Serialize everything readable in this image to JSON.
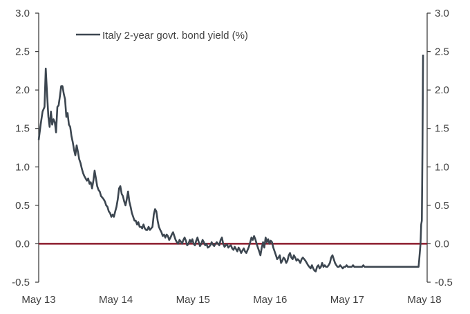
{
  "chart_data": {
    "type": "line",
    "title": "",
    "xlabel": "",
    "ylabel": "",
    "ylim": [
      -0.5,
      3.0
    ],
    "y_ticks": [
      "3.0",
      "2.5",
      "2.0",
      "1.5",
      "1.0",
      "0.5",
      "0.0",
      "-0.5"
    ],
    "y_tick_values": [
      3.0,
      2.5,
      2.0,
      1.5,
      1.0,
      0.5,
      0.0,
      -0.5
    ],
    "secondary_y_ticks": [
      "3.0",
      "2.5",
      "2.0",
      "1.5",
      "1.0",
      "0.5",
      "0.0",
      "-0.5"
    ],
    "x_ticks": [
      "May 13",
      "May 14",
      "May 15",
      "May 16",
      "May 17",
      "May 18"
    ],
    "grid": false,
    "legend_position": "top-left inside",
    "reference_line": {
      "value": 0.0,
      "color": "#8b1a2b"
    },
    "series": [
      {
        "name": "Italy 2-year govt. bond yield (%)",
        "color": "#3c4650",
        "x_months_since_may13": [
          0,
          0.3,
          0.6,
          0.9,
          1.1,
          1.3,
          1.5,
          1.7,
          1.9,
          2.1,
          2.3,
          2.5,
          2.7,
          2.9,
          3.1,
          3.3,
          3.5,
          3.7,
          3.9,
          4.1,
          4.3,
          4.5,
          4.7,
          4.9,
          5.1,
          5.3,
          5.5,
          5.7,
          5.9,
          6.1,
          6.3,
          6.5,
          6.7,
          6.9,
          7.1,
          7.3,
          7.5,
          7.7,
          7.9,
          8.1,
          8.3,
          8.5,
          8.7,
          8.9,
          9.1,
          9.3,
          9.5,
          9.7,
          9.9,
          10.1,
          10.3,
          10.5,
          10.7,
          10.9,
          11.1,
          11.3,
          11.5,
          11.7,
          11.9,
          12.1,
          12.3,
          12.5,
          12.7,
          12.9,
          13.1,
          13.3,
          13.5,
          13.7,
          13.9,
          14.1,
          14.3,
          14.5,
          14.7,
          14.9,
          15.1,
          15.3,
          15.5,
          15.7,
          15.9,
          16.1,
          16.3,
          16.5,
          16.7,
          16.9,
          17.1,
          17.3,
          17.5,
          17.7,
          17.9,
          18.1,
          18.3,
          18.5,
          18.7,
          18.9,
          19.1,
          19.3,
          19.5,
          19.7,
          19.9,
          20.1,
          20.3,
          20.5,
          20.7,
          20.9,
          21.1,
          21.3,
          21.5,
          21.7,
          21.9,
          22.1,
          22.3,
          22.5,
          22.7,
          22.9,
          23.1,
          23.3,
          23.5,
          23.7,
          23.9,
          24.1,
          24.3,
          24.5,
          24.7,
          24.9,
          25.1,
          25.3,
          25.5,
          25.7,
          25.9,
          26.1,
          26.3,
          26.5,
          26.7,
          26.9,
          27.1,
          27.3,
          27.5,
          27.7,
          27.9,
          28.1,
          28.3,
          28.5,
          28.7,
          28.9,
          29.1,
          29.3,
          29.5,
          29.7,
          29.9,
          30.1,
          30.3,
          30.5,
          30.7,
          30.9,
          31.1,
          31.3,
          31.5,
          31.7,
          31.9,
          32.1,
          32.3,
          32.5,
          32.7,
          32.9,
          33.1,
          33.3,
          33.5,
          33.7,
          33.9,
          34.1,
          34.3,
          34.5,
          34.7,
          34.9,
          35.1,
          35.3,
          35.5,
          35.7,
          35.9,
          36.1,
          36.3,
          36.5,
          36.7,
          36.9,
          37.1,
          37.3,
          37.5,
          37.7,
          37.9,
          38.1,
          38.3,
          38.5,
          38.7,
          38.9,
          39.1,
          39.3,
          39.5,
          39.7,
          39.9,
          40.1,
          40.3,
          40.5,
          40.7,
          40.9,
          41.1,
          41.3,
          41.5,
          41.7,
          41.9,
          42.1,
          42.3,
          42.5,
          42.7,
          42.9,
          43.1,
          43.3,
          43.5,
          43.7,
          43.9,
          44.1,
          44.3,
          44.5,
          44.7,
          44.9,
          45.1,
          45.3,
          45.5,
          45.7,
          45.9,
          46.1,
          46.3,
          46.5,
          46.7,
          46.9,
          47.1,
          47.3,
          47.5,
          47.7,
          47.9,
          48.1,
          48.3,
          48.5,
          48.7,
          48.9,
          49.1,
          49.3,
          49.5,
          49.7,
          49.9,
          50.1,
          50.3,
          50.5,
          50.7,
          50.9,
          51.1,
          51.3,
          51.5,
          51.7,
          51.9,
          52.1,
          52.3,
          52.5,
          52.7,
          52.9,
          53.1,
          53.3,
          53.5,
          53.7,
          53.9,
          54.1,
          54.3,
          54.5,
          54.7,
          54.9,
          55.1,
          55.3,
          55.5,
          55.7,
          55.9,
          56.1,
          56.3,
          56.5,
          56.7,
          56.9,
          57.1,
          57.3,
          57.5,
          57.7,
          57.9,
          58.1,
          58.3,
          58.5,
          58.7,
          58.9,
          59.1,
          59.3,
          59.5,
          59.7,
          59.9
        ],
        "values": [
          1.35,
          1.55,
          1.72,
          1.78,
          2.28,
          1.95,
          1.65,
          1.52,
          1.72,
          1.55,
          1.62,
          1.58,
          1.45,
          1.78,
          1.8,
          1.92,
          2.05,
          2.05,
          1.95,
          1.88,
          1.65,
          1.7,
          1.55,
          1.52,
          1.4,
          1.32,
          1.22,
          1.15,
          1.28,
          1.2,
          1.1,
          1.05,
          0.98,
          0.92,
          0.88,
          0.85,
          0.82,
          0.85,
          0.78,
          0.8,
          0.72,
          0.82,
          0.95,
          0.85,
          0.75,
          0.7,
          0.68,
          0.62,
          0.6,
          0.58,
          0.55,
          0.5,
          0.48,
          0.42,
          0.4,
          0.35,
          0.38,
          0.35,
          0.42,
          0.48,
          0.58,
          0.72,
          0.75,
          0.65,
          0.62,
          0.55,
          0.5,
          0.58,
          0.68,
          0.55,
          0.48,
          0.4,
          0.35,
          0.3,
          0.3,
          0.25,
          0.28,
          0.22,
          0.22,
          0.2,
          0.25,
          0.2,
          0.18,
          0.18,
          0.22,
          0.18,
          0.2,
          0.22,
          0.38,
          0.45,
          0.42,
          0.3,
          0.22,
          0.18,
          0.15,
          0.1,
          0.12,
          0.08,
          0.12,
          0.1,
          0.05,
          0.08,
          0.12,
          0.15,
          0.1,
          0.05,
          0.02,
          0.0,
          0.05,
          0.03,
          0.0,
          0.05,
          0.08,
          0.04,
          -0.02,
          0.0,
          0.05,
          0.02,
          0.06,
          0.0,
          -0.02,
          0.04,
          0.08,
          0.02,
          -0.03,
          0.0,
          0.05,
          0.02,
          -0.02,
          0.0,
          -0.05,
          -0.04,
          -0.02,
          0.02,
          -0.01,
          -0.03,
          0.0,
          0.02,
          0.0,
          -0.02,
          0.05,
          0.08,
          0.0,
          -0.04,
          -0.02,
          -0.01,
          -0.05,
          -0.03,
          -0.02,
          -0.06,
          -0.08,
          -0.04,
          -0.07,
          -0.1,
          -0.05,
          -0.08,
          -0.12,
          -0.09,
          -0.06,
          -0.1,
          -0.12,
          -0.08,
          -0.04,
          0.02,
          0.08,
          0.05,
          0.1,
          0.06,
          0.0,
          -0.05,
          -0.1,
          -0.15,
          -0.05,
          0.02,
          -0.05,
          0.08,
          0.02,
          0.06,
          0.0,
          0.04,
          0.02,
          -0.05,
          -0.1,
          -0.15,
          -0.2,
          -0.18,
          -0.15,
          -0.25,
          -0.22,
          -0.18,
          -0.2,
          -0.25,
          -0.22,
          -0.15,
          -0.12,
          -0.18,
          -0.2,
          -0.15,
          -0.18,
          -0.22,
          -0.2,
          -0.22,
          -0.25,
          -0.2,
          -0.18,
          -0.2,
          -0.22,
          -0.25,
          -0.28,
          -0.3,
          -0.32,
          -0.28,
          -0.32,
          -0.35,
          -0.36,
          -0.3,
          -0.28,
          -0.32,
          -0.3,
          -0.25,
          -0.3,
          -0.28,
          -0.3,
          -0.3,
          -0.28,
          -0.25,
          -0.18,
          -0.15,
          -0.2,
          -0.25,
          -0.28,
          -0.3,
          -0.3,
          -0.28,
          -0.3,
          -0.32,
          -0.3,
          -0.3,
          -0.28,
          -0.3,
          -0.3,
          -0.3,
          -0.3,
          -0.28,
          -0.3,
          -0.3,
          -0.3,
          -0.3,
          -0.3,
          -0.3,
          -0.3,
          -0.28,
          -0.3,
          -0.3,
          -0.3,
          -0.3,
          -0.3,
          -0.3,
          -0.3,
          -0.3,
          -0.3,
          -0.3,
          -0.3,
          -0.3,
          -0.3,
          -0.3,
          -0.3,
          -0.3,
          -0.3,
          -0.3,
          -0.3,
          -0.3,
          -0.3,
          -0.3,
          -0.3,
          -0.3,
          -0.3,
          -0.3,
          -0.3,
          -0.3,
          -0.3,
          -0.3,
          -0.3,
          -0.3,
          -0.3,
          -0.3,
          -0.3,
          -0.3,
          -0.3,
          -0.3,
          -0.3,
          -0.3,
          -0.3,
          -0.3,
          -0.3,
          -0.3,
          -0.3,
          -0.3,
          -0.3,
          -0.3,
          -0.3,
          -0.3,
          -0.3
        ],
        "tail_spike": [
          [
            59.2,
            -0.2
          ],
          [
            59.4,
            0.0
          ],
          [
            59.5,
            0.25
          ],
          [
            59.6,
            0.3
          ],
          [
            59.7,
            1.2
          ],
          [
            59.8,
            2.46
          ]
        ]
      }
    ]
  },
  "legend": {
    "label": "Italy 2-year govt. bond yield (%)"
  }
}
